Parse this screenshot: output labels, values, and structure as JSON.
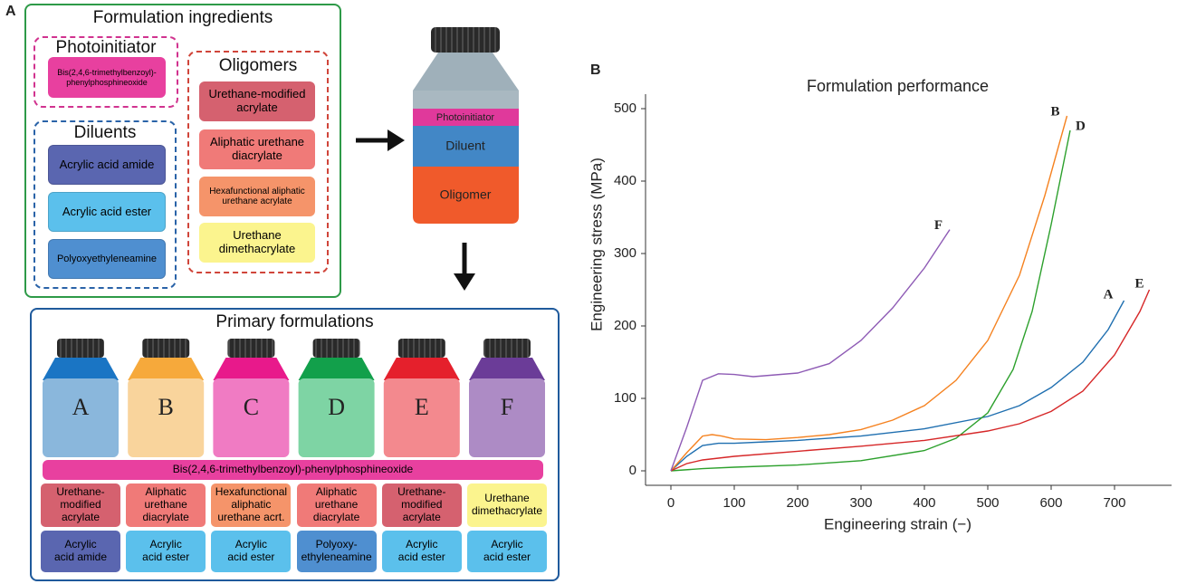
{
  "label_a": "A",
  "ingredients": {
    "title": "Formulation ingredients",
    "photoinitiator": {
      "title": "Photoinitiator",
      "items": [
        "Bis(2,4,6-trimethylbenzoyl)-\nphenylphosphineoxide"
      ]
    },
    "diluents": {
      "title": "Diluents",
      "items": [
        "Acrylic acid amide",
        "Acrylic acid ester",
        "Polyoxyethyleneamine"
      ]
    },
    "oligomers": {
      "title": "Oligomers",
      "items": [
        "Urethane-modified\nacrylate",
        "Aliphatic urethane\ndiacrylate",
        "Hexafunctional aliphatic\nurethane acrylate",
        "Urethane\ndimethacrylate"
      ]
    }
  },
  "bottle": {
    "layers": [
      "Photoinitiator",
      "Diluent",
      "Oligomer"
    ]
  },
  "primary": {
    "title": "Primary formulations",
    "formulations": [
      "A",
      "B",
      "C",
      "D",
      "E",
      "F"
    ],
    "photoinitiator": "Bis(2,4,6-trimethylbenzoyl)-phenylphosphineoxide",
    "oligomers": [
      "Urethane-\nmodified\nacrylate",
      "Aliphatic\nurethane\ndiacrylate",
      "Hexafunctional\naliphatic\nurethane acrt.",
      "Aliphatic\nurethane\ndiacrylate",
      "Urethane-\nmodified\nacrylate",
      "Urethane\ndimethacrylate"
    ],
    "diluents": [
      "Acrylic\nacid amide",
      "Acrylic\nacid ester",
      "Acrylic\nacid ester",
      "Polyoxy-\nethyleneamine",
      "Acrylic\nacid ester",
      "Acrylic\nacid ester"
    ]
  },
  "label_b": "B",
  "chart_data": {
    "type": "line",
    "title": "Formulation performance",
    "xlabel": "Engineering strain (−)",
    "ylabel": "Engineering stress (MPa)",
    "xlim": [
      -40,
      790
    ],
    "ylim": [
      -20,
      520
    ],
    "xticks": [
      0,
      100,
      200,
      300,
      400,
      500,
      600,
      700
    ],
    "yticks": [
      0,
      100,
      200,
      300,
      400,
      500
    ],
    "series": [
      {
        "name": "A",
        "color": "#1f6fb0",
        "x": [
          0,
          25,
          50,
          75,
          100,
          150,
          200,
          300,
          400,
          500,
          550,
          600,
          650,
          690,
          715
        ],
        "values": [
          0,
          20,
          35,
          38,
          38,
          40,
          42,
          48,
          58,
          75,
          90,
          115,
          150,
          195,
          235
        ]
      },
      {
        "name": "B",
        "color": "#f58220",
        "x": [
          0,
          25,
          50,
          65,
          80,
          100,
          150,
          200,
          250,
          300,
          350,
          400,
          450,
          500,
          550,
          590,
          625
        ],
        "values": [
          0,
          25,
          48,
          50,
          48,
          44,
          43,
          46,
          50,
          57,
          70,
          90,
          125,
          180,
          270,
          380,
          490
        ]
      },
      {
        "name": "D",
        "color": "#2ca02c",
        "x": [
          0,
          50,
          100,
          200,
          300,
          400,
          450,
          500,
          540,
          570,
          600,
          630
        ],
        "values": [
          0,
          3,
          5,
          8,
          14,
          28,
          45,
          80,
          140,
          220,
          340,
          470
        ]
      },
      {
        "name": "E",
        "color": "#d62728",
        "x": [
          0,
          25,
          50,
          100,
          200,
          300,
          400,
          500,
          550,
          600,
          650,
          700,
          740,
          755
        ],
        "values": [
          0,
          10,
          15,
          20,
          27,
          34,
          42,
          55,
          65,
          82,
          110,
          160,
          220,
          250
        ]
      },
      {
        "name": "F",
        "color": "#8e5bb5",
        "x": [
          0,
          25,
          50,
          75,
          100,
          130,
          200,
          250,
          300,
          350,
          400,
          440
        ],
        "values": [
          0,
          60,
          125,
          134,
          133,
          130,
          135,
          148,
          180,
          225,
          280,
          333
        ]
      }
    ]
  }
}
